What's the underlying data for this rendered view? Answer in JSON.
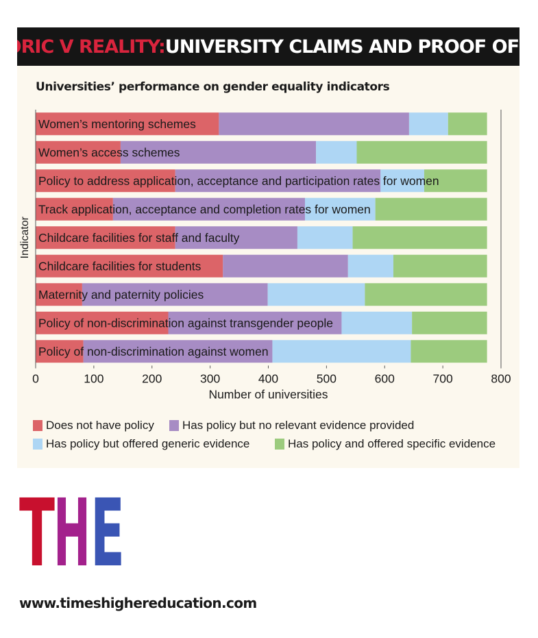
{
  "header": {
    "title_accent": "RHETORIC V REALITY:",
    "title_main": " UNIVERSITY CLAIMS AND PROOF OFFERED"
  },
  "footer": {
    "url": "www.timeshighereducation.com",
    "logo": {
      "letters": [
        "T",
        "H",
        "E"
      ],
      "colors": [
        "#c8102e",
        "#a3218c",
        "#3a55b4"
      ]
    }
  },
  "chart_data": {
    "type": "bar",
    "orientation": "horizontal",
    "stacked": true,
    "title": "Universities’ performance on gender equality indicators",
    "xlabel": "Number of universities",
    "ylabel": "Indicator",
    "xlim": [
      0,
      800
    ],
    "xticks": [
      0,
      100,
      200,
      300,
      400,
      500,
      600,
      700,
      800
    ],
    "grid": false,
    "legend_position": "bottom",
    "categories": [
      "Women’s mentoring schemes",
      "Women’s access schemes",
      "Policy to address application, acceptance and participation rates for women",
      "Track application, acceptance and completion rates for women",
      "Childcare facilities for staff and faculty",
      "Childcare facilities for students",
      "Maternity and paternity policies",
      "Policy of non-discrimination against transgender people",
      "Policy of non-discrimination against women"
    ],
    "series": [
      {
        "name": "Does not have policy",
        "color": "#dc6468",
        "values": [
          315,
          146,
          240,
          133,
          240,
          322,
          80,
          228,
          82
        ]
      },
      {
        "name": "Has policy but no relevant evidence provided",
        "color": "#a78cc4",
        "values": [
          327,
          336,
          353,
          330,
          210,
          215,
          319,
          298,
          325
        ]
      },
      {
        "name": "Has policy but offered generic evidence",
        "color": "#aed6f4",
        "values": [
          67,
          70,
          75,
          121,
          95,
          78,
          167,
          121,
          238
        ]
      },
      {
        "name": "Has policy and offered specific evidence",
        "color": "#9ccb7e",
        "values": [
          67,
          224,
          108,
          192,
          231,
          161,
          210,
          129,
          131
        ]
      }
    ]
  }
}
